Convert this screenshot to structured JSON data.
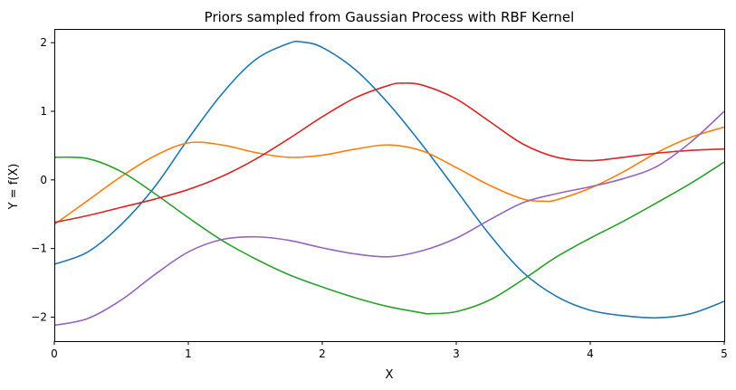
{
  "chart_data": {
    "type": "line",
    "title": "Priors sampled from Gaussian Process with RBF Kernel",
    "xlabel": "X",
    "ylabel": "Y = f(X)",
    "xlim": [
      0,
      5
    ],
    "ylim": [
      -2.35,
      2.2
    ],
    "xticks": [
      0,
      1,
      2,
      3,
      4,
      5
    ],
    "yticks": [
      -2,
      -1,
      0,
      1,
      2
    ],
    "grid": false,
    "legend": "none",
    "series": [
      {
        "color": "#1f77b4",
        "x": [
          0,
          0.25,
          0.5,
          0.75,
          1.0,
          1.25,
          1.5,
          1.75,
          1.85,
          2.0,
          2.25,
          2.5,
          2.75,
          3.0,
          3.25,
          3.5,
          3.75,
          4.0,
          4.25,
          4.5,
          4.75,
          5.0
        ],
        "y": [
          -1.23,
          -1.05,
          -0.65,
          -0.1,
          0.6,
          1.25,
          1.75,
          1.99,
          2.01,
          1.93,
          1.6,
          1.1,
          0.5,
          -0.15,
          -0.8,
          -1.35,
          -1.7,
          -1.9,
          -1.98,
          -2.01,
          -1.95,
          -1.77
        ]
      },
      {
        "color": "#ff7f0e",
        "x": [
          0,
          0.25,
          0.5,
          0.75,
          1.0,
          1.25,
          1.5,
          1.75,
          2.0,
          2.25,
          2.5,
          2.75,
          3.0,
          3.25,
          3.5,
          3.65,
          3.75,
          4.0,
          4.25,
          4.5,
          4.75,
          5.0
        ],
        "y": [
          -0.65,
          -0.3,
          0.05,
          0.35,
          0.54,
          0.51,
          0.4,
          0.33,
          0.36,
          0.45,
          0.51,
          0.42,
          0.18,
          -0.08,
          -0.28,
          -0.31,
          -0.29,
          -0.12,
          0.12,
          0.4,
          0.62,
          0.77
        ]
      },
      {
        "color": "#2ca02c",
        "x": [
          0,
          0.25,
          0.5,
          0.75,
          1.0,
          1.25,
          1.5,
          1.75,
          2.0,
          2.25,
          2.5,
          2.75,
          2.8,
          3.0,
          3.25,
          3.5,
          3.75,
          4.0,
          4.25,
          4.5,
          4.75,
          5.0
        ],
        "y": [
          0.33,
          0.31,
          0.12,
          -0.2,
          -0.55,
          -0.88,
          -1.15,
          -1.38,
          -1.56,
          -1.72,
          -1.85,
          -1.94,
          -1.95,
          -1.92,
          -1.75,
          -1.45,
          -1.12,
          -0.85,
          -0.6,
          -0.33,
          -0.05,
          0.26
        ]
      },
      {
        "color": "#d62728",
        "x": [
          0,
          0.25,
          0.5,
          0.75,
          1.0,
          1.25,
          1.5,
          1.75,
          2.0,
          2.25,
          2.5,
          2.6,
          2.75,
          3.0,
          3.25,
          3.5,
          3.75,
          4.0,
          4.25,
          4.5,
          4.75,
          5.0
        ],
        "y": [
          -0.62,
          -0.52,
          -0.4,
          -0.28,
          -0.14,
          0.05,
          0.3,
          0.6,
          0.92,
          1.2,
          1.38,
          1.41,
          1.38,
          1.18,
          0.85,
          0.52,
          0.33,
          0.28,
          0.33,
          0.39,
          0.43,
          0.45
        ]
      },
      {
        "color": "#9467bd",
        "x": [
          0,
          0.25,
          0.5,
          0.75,
          1.0,
          1.25,
          1.5,
          1.75,
          2.0,
          2.25,
          2.5,
          2.75,
          3.0,
          3.25,
          3.5,
          3.75,
          4.0,
          4.25,
          4.5,
          4.75,
          5.0
        ],
        "y": [
          -2.12,
          -2.02,
          -1.75,
          -1.38,
          -1.05,
          -0.87,
          -0.83,
          -0.88,
          -0.99,
          -1.08,
          -1.12,
          -1.03,
          -0.85,
          -0.58,
          -0.33,
          -0.2,
          -0.1,
          0.02,
          0.2,
          0.55,
          1.0
        ]
      }
    ]
  }
}
